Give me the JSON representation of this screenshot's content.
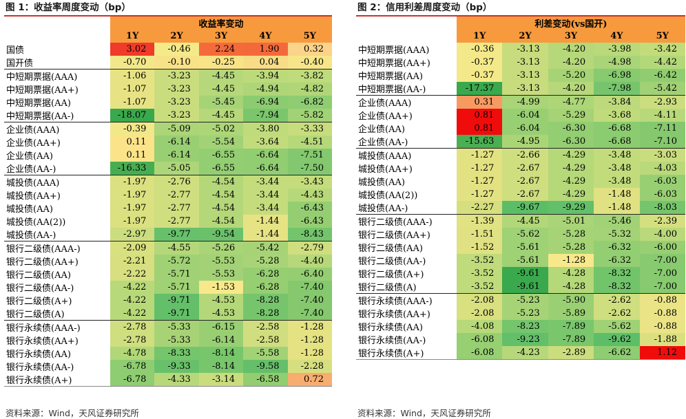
{
  "panel1": {
    "title": "图 1：收益率周度变动（bp）",
    "header_group": "收益率变动",
    "columns": [
      "1Y",
      "2Y",
      "3Y",
      "4Y",
      "5Y"
    ],
    "rows": [
      {
        "label": "国债",
        "values": [
          "3.02",
          "-0.46",
          "2.24",
          "1.90",
          "0.32"
        ],
        "colors": [
          "#f03a2a",
          "#f5ea8a",
          "#f46a3b",
          "#f4693c",
          "#fbd38a"
        ]
      },
      {
        "label": "国开债",
        "values": [
          "-0.70",
          "-0.10",
          "-0.25",
          "0.04",
          "-0.40"
        ],
        "colors": [
          "#f2e88a",
          "#f8e287",
          "#f8e487",
          "#f8dd86",
          "#f6e689"
        ]
      },
      {
        "label": "中短期票据(AAA)",
        "values": [
          "-1.06",
          "-3.23",
          "-4.45",
          "-3.94",
          "-3.82"
        ],
        "colors": [
          "#e7e384",
          "#c9dd7e",
          "#b6d87a",
          "#bdda7b",
          "#bfdb7b"
        ]
      },
      {
        "label": "中短期票据(AA+)",
        "values": [
          "-1.07",
          "-3.23",
          "-4.45",
          "-4.94",
          "-4.82"
        ],
        "colors": [
          "#e7e384",
          "#c9dd7e",
          "#b6d87a",
          "#aed678",
          "#b0d678"
        ]
      },
      {
        "label": "中短期票据(AA)",
        "values": [
          "-1.07",
          "-3.23",
          "-5.45",
          "-6.94",
          "-6.82"
        ],
        "colors": [
          "#e7e384",
          "#c9dd7e",
          "#a6d376",
          "#8ccc70",
          "#8ecd71"
        ]
      },
      {
        "label": "中短期票据(AA-)",
        "values": [
          "-18.07",
          "-3.23",
          "-4.45",
          "-7.94",
          "-5.82"
        ],
        "colors": [
          "#3aa84d",
          "#c9dd7e",
          "#b6d87a",
          "#7bc66c",
          "#a1d275"
        ]
      },
      {
        "label": "企业债(AAA)",
        "values": [
          "-0.39",
          "-5.09",
          "-5.02",
          "-3.80",
          "-3.33"
        ],
        "colors": [
          "#f1e889",
          "#acd578",
          "#add678",
          "#bfdb7b",
          "#c7dd7d"
        ]
      },
      {
        "label": "企业债(AA+)",
        "values": [
          "0.11",
          "-6.14",
          "-5.54",
          "-3.64",
          "-4.51"
        ],
        "colors": [
          "#fbe38a",
          "#99cf73",
          "#a3d276",
          "#c2dc7c",
          "#b5d879"
        ]
      },
      {
        "label": "企业债(AA)",
        "values": [
          "0.11",
          "-6.14",
          "-6.55",
          "-6.64",
          "-7.51"
        ],
        "colors": [
          "#fbe38a",
          "#99cf73",
          "#93ce72",
          "#91cd71",
          "#83c86e"
        ]
      },
      {
        "label": "企业债(AA-)",
        "values": [
          "-16.33",
          "-5.05",
          "-6.55",
          "-6.64",
          "-7.50"
        ],
        "colors": [
          "#47ad51",
          "#add678",
          "#93ce72",
          "#91cd71",
          "#83c86e"
        ]
      },
      {
        "label": "城投债(AAA)",
        "values": [
          "-1.97",
          "-2.76",
          "-4.54",
          "-3.44",
          "-3.43"
        ],
        "colors": [
          "#dbe080",
          "#cfde7f",
          "#b4d879",
          "#c5dc7c",
          "#c5dc7c"
        ]
      },
      {
        "label": "城投债(AA+)",
        "values": [
          "-1.97",
          "-2.77",
          "-4.54",
          "-3.44",
          "-4.43"
        ],
        "colors": [
          "#dbe080",
          "#cfde7f",
          "#b4d879",
          "#c5dc7c",
          "#b6d87a"
        ]
      },
      {
        "label": "城投债(AA)",
        "values": [
          "-1.97",
          "-2.77",
          "-4.54",
          "-3.44",
          "-6.43"
        ],
        "colors": [
          "#dbe080",
          "#cfde7f",
          "#b4d879",
          "#c5dc7c",
          "#95ce72"
        ]
      },
      {
        "label": "城投债(AA(2))",
        "values": [
          "-1.97",
          "-2.77",
          "-4.54",
          "-1.44",
          "-6.43"
        ],
        "colors": [
          "#dbe080",
          "#cfde7f",
          "#b4d879",
          "#e6e384",
          "#95ce72"
        ]
      },
      {
        "label": "城投债(AA-)",
        "values": [
          "-2.97",
          "-9.77",
          "-9.54",
          "-1.44",
          "-8.43"
        ],
        "colors": [
          "#cbdd7e",
          "#67c06a",
          "#6bc16a",
          "#e6e384",
          "#74c46c"
        ]
      },
      {
        "label": "银行二级债(AAA-)",
        "values": [
          "-2.09",
          "-4.55",
          "-5.26",
          "-5.42",
          "-2.79"
        ],
        "colors": [
          "#d9e080",
          "#b4d879",
          "#a9d477",
          "#a6d376",
          "#cfde7f"
        ]
      },
      {
        "label": "银行二级债(AA+)",
        "values": [
          "-2.21",
          "-5.72",
          "-5.53",
          "-5.28",
          "-4.40"
        ],
        "colors": [
          "#d7df80",
          "#a0d175",
          "#a3d276",
          "#a8d477",
          "#b6d87a"
        ]
      },
      {
        "label": "银行二级债(AA)",
        "values": [
          "-2.22",
          "-5.71",
          "-5.53",
          "-6.28",
          "-6.40"
        ],
        "colors": [
          "#d7df80",
          "#a0d175",
          "#a3d276",
          "#96ce72",
          "#95ce72"
        ]
      },
      {
        "label": "银行二级债(AA-)",
        "values": [
          "-4.22",
          "-5.71",
          "-1.53",
          "-6.28",
          "-7.40"
        ],
        "colors": [
          "#b8d97a",
          "#a0d175",
          "#f7e98b",
          "#96ce72",
          "#85c86e"
        ]
      },
      {
        "label": "银行二级债(A+)",
        "values": [
          "-4.22",
          "-9.71",
          "-4.53",
          "-8.28",
          "-7.40"
        ],
        "colors": [
          "#b8d97a",
          "#63bf69",
          "#b4d879",
          "#76c56c",
          "#85c86e"
        ]
      },
      {
        "label": "银行二级债(A)",
        "values": [
          "-4.22",
          "-9.71",
          "-4.53",
          "-8.28",
          "-7.40"
        ],
        "colors": [
          "#b8d97a",
          "#63bf69",
          "#b4d879",
          "#76c56c",
          "#85c86e"
        ]
      },
      {
        "label": "银行永续债(AAA-)",
        "values": [
          "-2.78",
          "-5.33",
          "-6.15",
          "-2.58",
          "-1.28"
        ],
        "colors": [
          "#cfde7f",
          "#a7d376",
          "#99cf73",
          "#d1de7f",
          "#e4e283"
        ]
      },
      {
        "label": "银行永续债(AA+)",
        "values": [
          "-2.78",
          "-5.33",
          "-6.14",
          "-2.58",
          "-1.28"
        ],
        "colors": [
          "#cfde7f",
          "#a7d376",
          "#99cf73",
          "#d1de7f",
          "#e4e283"
        ]
      },
      {
        "label": "银行永续债(AA)",
        "values": [
          "-4.78",
          "-8.33",
          "-8.14",
          "-5.58",
          "-1.28"
        ],
        "colors": [
          "#b1d779",
          "#75c56c",
          "#78c66c",
          "#a2d276",
          "#e4e283"
        ]
      },
      {
        "label": "银行永续债(AA-)",
        "values": [
          "-6.78",
          "-9.33",
          "-8.14",
          "-9.58",
          "-2.28"
        ],
        "colors": [
          "#8ecd71",
          "#69c06a",
          "#78c66c",
          "#65bf69",
          "#d6df80"
        ]
      },
      {
        "label": "银行永续债(A+)",
        "values": [
          "-6.78",
          "-4.33",
          "-3.14",
          "-6.58",
          "0.72"
        ],
        "colors": [
          "#8ecd71",
          "#b7d87a",
          "#cadd7e",
          "#92cd71",
          "#f8ad70"
        ]
      }
    ],
    "separators_before": [
      2,
      6,
      10,
      15,
      21
    ],
    "source": "资料来源：Wind，天风证券研究所"
  },
  "panel2": {
    "title": "图 2：信用利差周度变动（bp）",
    "header_group": "利差变动(vs国开)",
    "columns": [
      "1Y",
      "2Y",
      "3Y",
      "4Y",
      "5Y"
    ],
    "rows": [
      {
        "label": "中短期票据(AAA)",
        "values": [
          "-0.36",
          "-3.13",
          "-4.20",
          "-3.98",
          "-3.42"
        ],
        "colors": [
          "#f3e98a",
          "#c7dc7d",
          "#b6d87a",
          "#b9d97a",
          "#c2dc7c"
        ]
      },
      {
        "label": "中短期票据(AA+)",
        "values": [
          "-0.37",
          "-3.13",
          "-4.20",
          "-4.98",
          "-4.42"
        ],
        "colors": [
          "#f3e98a",
          "#c7dc7d",
          "#b6d87a",
          "#a9d477",
          "#b3d879"
        ]
      },
      {
        "label": "中短期票据(AA)",
        "values": [
          "-0.37",
          "-3.13",
          "-5.20",
          "-6.98",
          "-6.42"
        ],
        "colors": [
          "#f3e98a",
          "#c7dc7d",
          "#a6d376",
          "#87ca6f",
          "#90cd71"
        ]
      },
      {
        "label": "中短期票据(AA-)",
        "values": [
          "-17.37",
          "-3.13",
          "-4.20",
          "-7.98",
          "-5.42"
        ],
        "colors": [
          "#3aa84d",
          "#c7dc7d",
          "#b6d87a",
          "#76c56c",
          "#a0d175"
        ]
      },
      {
        "label": "企业债(AAA)",
        "values": [
          "0.31",
          "-4.99",
          "-4.77",
          "-3.84",
          "-2.93"
        ],
        "colors": [
          "#f79a62",
          "#a9d477",
          "#add678",
          "#bcda7b",
          "#cbdd7e"
        ]
      },
      {
        "label": "企业债(AA+)",
        "values": [
          "0.81",
          "-6.04",
          "-5.29",
          "-3.68",
          "-4.11"
        ],
        "colors": [
          "#f10c0c",
          "#98cf73",
          "#a5d376",
          "#bfdb7b",
          "#b8d97a"
        ]
      },
      {
        "label": "企业债(AA)",
        "values": [
          "0.81",
          "-6.04",
          "-6.30",
          "-6.68",
          "-7.11"
        ],
        "colors": [
          "#f10c0c",
          "#98cf73",
          "#93ce72",
          "#8ccc70",
          "#85c86e"
        ]
      },
      {
        "label": "企业债(AA-)",
        "values": [
          "-15.63",
          "-4.95",
          "-6.30",
          "-6.68",
          "-7.10"
        ],
        "colors": [
          "#4aae52",
          "#aad577",
          "#93ce72",
          "#8ccc70",
          "#85c86e"
        ]
      },
      {
        "label": "城投债(AAA)",
        "values": [
          "-1.27",
          "-2.66",
          "-4.29",
          "-3.48",
          "-3.03"
        ],
        "colors": [
          "#e3e283",
          "#cfde7f",
          "#b5d879",
          "#c2dc7c",
          "#cadd7e"
        ]
      },
      {
        "label": "城投债(AA+)",
        "values": [
          "-1.27",
          "-2.67",
          "-4.29",
          "-3.48",
          "-4.03"
        ],
        "colors": [
          "#e3e283",
          "#cfde7f",
          "#b5d879",
          "#c2dc7c",
          "#b9d97a"
        ]
      },
      {
        "label": "城投债(AA)",
        "values": [
          "-1.27",
          "-2.67",
          "-4.29",
          "-3.48",
          "-6.03"
        ],
        "colors": [
          "#e3e283",
          "#cfde7f",
          "#b5d879",
          "#c2dc7c",
          "#98cf73"
        ]
      },
      {
        "label": "城投债(AA(2))",
        "values": [
          "-1.27",
          "-2.67",
          "-4.29",
          "-1.48",
          "-6.03"
        ],
        "colors": [
          "#e3e283",
          "#cfde7f",
          "#b5d879",
          "#e0e182",
          "#98cf73"
        ]
      },
      {
        "label": "城投债(AA-)",
        "values": [
          "-2.27",
          "-9.67",
          "-9.29",
          "-1.48",
          "-8.03"
        ],
        "colors": [
          "#d6df80",
          "#5cbd67",
          "#63bf69",
          "#e0e182",
          "#76c56c"
        ]
      },
      {
        "label": "银行二级债(AAA-)",
        "values": [
          "-1.39",
          "-4.45",
          "-5.01",
          "-5.46",
          "-2.39"
        ],
        "colors": [
          "#e1e283",
          "#b1d779",
          "#a9d477",
          "#a1d275",
          "#d4df80"
        ]
      },
      {
        "label": "银行二级债(AA+)",
        "values": [
          "-1.51",
          "-5.62",
          "-5.28",
          "-5.32",
          "-4.00"
        ],
        "colors": [
          "#e0e182",
          "#9fd175",
          "#a5d376",
          "#a4d276",
          "#bad97a"
        ]
      },
      {
        "label": "银行二级债(AA)",
        "values": [
          "-1.52",
          "-5.61",
          "-5.28",
          "-6.32",
          "-6.00"
        ],
        "colors": [
          "#e0e182",
          "#9fd175",
          "#a5d376",
          "#93ce72",
          "#98cf73"
        ]
      },
      {
        "label": "银行二级债(AA-)",
        "values": [
          "-3.52",
          "-5.61",
          "-1.28",
          "-6.32",
          "-7.00"
        ],
        "colors": [
          "#c0db7b",
          "#9fd175",
          "#f7e98b",
          "#93ce72",
          "#87ca6f"
        ]
      },
      {
        "label": "银行二级债(A+)",
        "values": [
          "-3.52",
          "-9.61",
          "-4.28",
          "-8.32",
          "-7.00"
        ],
        "colors": [
          "#c0db7b",
          "#3aa84d",
          "#b5d879",
          "#72c46b",
          "#87ca6f"
        ]
      },
      {
        "label": "银行二级债(A)",
        "values": [
          "-3.52",
          "-9.61",
          "-4.28",
          "-8.32",
          "-7.00"
        ],
        "colors": [
          "#c0db7b",
          "#3aa84d",
          "#b5d879",
          "#72c46b",
          "#87ca6f"
        ]
      },
      {
        "label": "银行永续债(AAA-)",
        "values": [
          "-2.08",
          "-5.23",
          "-5.90",
          "-2.62",
          "-0.88"
        ],
        "colors": [
          "#d8e080",
          "#a6d376",
          "#9ad073",
          "#cfde7f",
          "#ebe486"
        ]
      },
      {
        "label": "银行永续债(AA+)",
        "values": [
          "-2.08",
          "-5.23",
          "-5.89",
          "-2.62",
          "-0.88"
        ],
        "colors": [
          "#d8e080",
          "#a6d376",
          "#9ad073",
          "#cfde7f",
          "#ebe486"
        ]
      },
      {
        "label": "银行永续债(AA)",
        "values": [
          "-4.08",
          "-8.23",
          "-7.89",
          "-5.62",
          "-0.88"
        ],
        "colors": [
          "#b8d97a",
          "#74c56c",
          "#7ac66c",
          "#9fd175",
          "#ebe486"
        ]
      },
      {
        "label": "银行永续债(AA-)",
        "values": [
          "-6.08",
          "-9.23",
          "-7.89",
          "-9.62",
          "-1.88"
        ],
        "colors": [
          "#97cf73",
          "#63bf69",
          "#7ac66c",
          "#5ebe68",
          "#dae080"
        ]
      },
      {
        "label": "银行永续债(A+)",
        "values": [
          "-6.08",
          "-4.23",
          "-2.89",
          "-6.62",
          "1.12"
        ],
        "colors": [
          "#97cf73",
          "#b6d87a",
          "#cbdd7e",
          "#8ecd71",
          "#f10c0c"
        ]
      }
    ],
    "separators_before": [
      4,
      8,
      13,
      19
    ],
    "source": "资料来源：Wind，天风证券研究所"
  }
}
